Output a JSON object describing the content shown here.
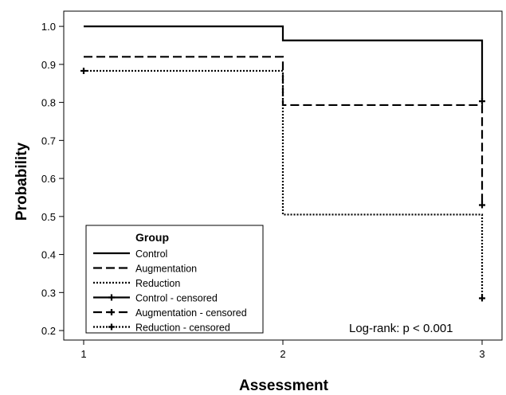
{
  "chart_data": {
    "type": "line",
    "step": true,
    "xlabel": "Assessment",
    "ylabel": "Probability",
    "x_ticks": [
      1,
      2,
      3
    ],
    "y_ticks": [
      "0.2",
      "0.3",
      "0.4",
      "0.5",
      "0.6",
      "0.7",
      "0.8",
      "0.9",
      "1.0"
    ],
    "xlim": [
      0.9,
      3.1
    ],
    "ylim": [
      0.175,
      1.04
    ],
    "grid": false,
    "legend_placement": "bottom-left",
    "legend_title": "Group",
    "series": [
      {
        "name": "Control",
        "style": "solid",
        "x": [
          1,
          2,
          3
        ],
        "y": [
          1.0,
          0.963,
          0.8
        ]
      },
      {
        "name": "Augmentation",
        "style": "dashed",
        "x": [
          1,
          2,
          3
        ],
        "y": [
          0.92,
          0.793,
          0.53
        ]
      },
      {
        "name": "Reduction",
        "style": "dotted",
        "x": [
          1,
          2,
          3
        ],
        "y": [
          0.883,
          0.505,
          0.285
        ]
      }
    ],
    "censored_legend": [
      "Control - censored",
      "Augmentation - censored",
      "Reduction - censored"
    ],
    "censored_points": [
      {
        "series": "Augmentation",
        "x": 3,
        "y": 0.803
      },
      {
        "series": "Augmentation",
        "x": 3,
        "y": 0.53
      },
      {
        "series": "Reduction",
        "x": 1,
        "y": 0.883
      },
      {
        "series": "Reduction",
        "x": 3,
        "y": 0.285
      }
    ],
    "annotation": "Log-rank: p < 0.001"
  }
}
